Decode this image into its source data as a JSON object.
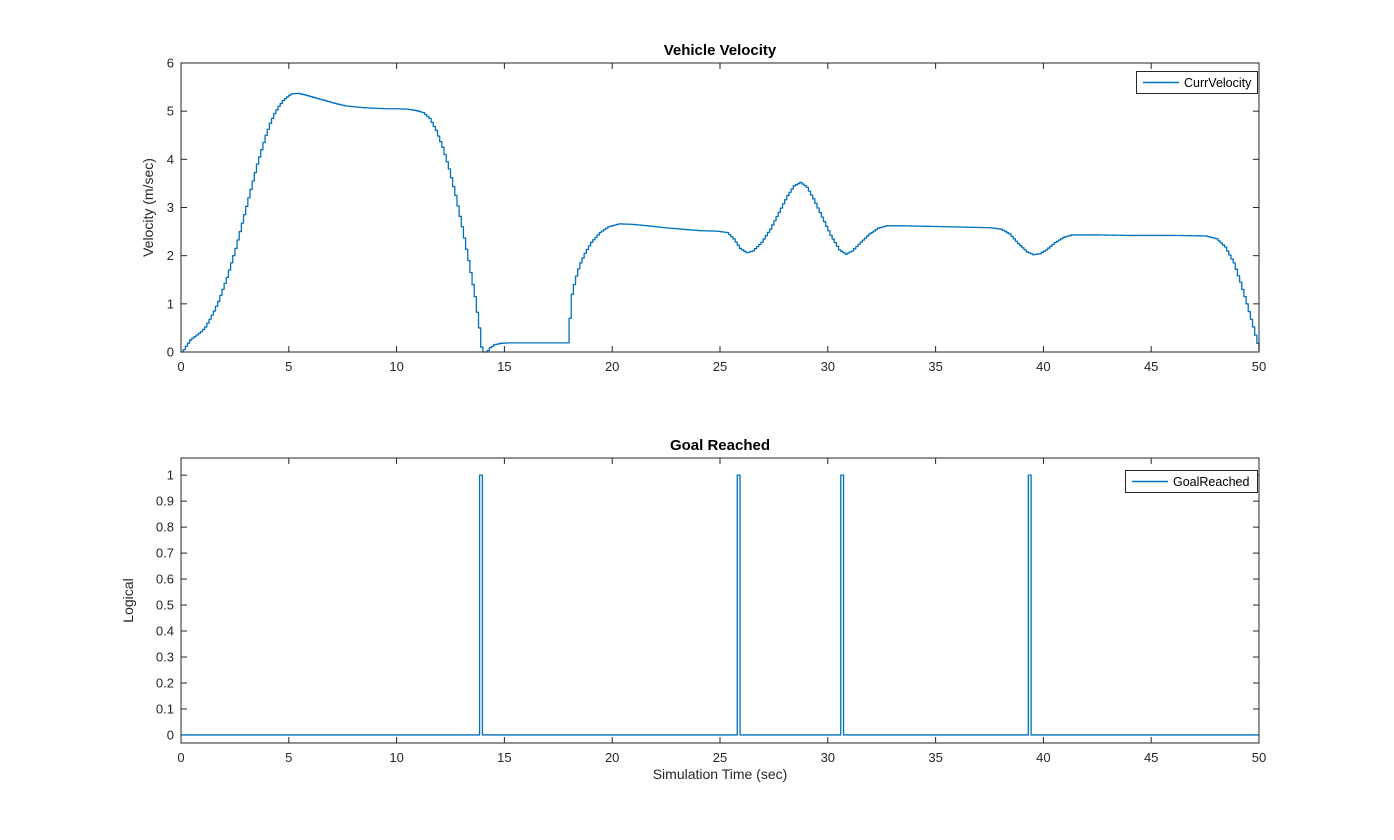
{
  "figure": {
    "background": "#ffffff",
    "axis_color": "#262626",
    "accent_blue": "#0072bd"
  },
  "chart_data": [
    {
      "type": "line",
      "title": "Vehicle Velocity",
      "xlabel": "",
      "ylabel": "Velocity (m/sec)",
      "xlim": [
        0,
        50
      ],
      "ylim": [
        0,
        6
      ],
      "xticks": [
        0,
        5,
        10,
        15,
        20,
        25,
        30,
        35,
        40,
        45,
        50
      ],
      "yticks": [
        0,
        1,
        2,
        3,
        4,
        5,
        6
      ],
      "grid": false,
      "box": true,
      "legend_position": "northeast",
      "line_width": 1.3,
      "sample_step_sec": 0.1,
      "series": [
        {
          "name": "CurrVelocity",
          "color": "#0072bd",
          "style": "zero-order-hold-staircase",
          "points": [
            [
              0,
              0
            ],
            [
              0.1,
              0.05
            ],
            [
              0.25,
              0.15
            ],
            [
              0.4,
              0.25
            ],
            [
              0.6,
              0.32
            ],
            [
              0.9,
              0.42
            ],
            [
              1.1,
              0.52
            ],
            [
              1.3,
              0.68
            ],
            [
              1.5,
              0.85
            ],
            [
              1.7,
              1.05
            ],
            [
              1.9,
              1.3
            ],
            [
              2.1,
              1.55
            ],
            [
              2.3,
              1.85
            ],
            [
              2.5,
              2.15
            ],
            [
              2.7,
              2.5
            ],
            [
              2.9,
              2.85
            ],
            [
              3.1,
              3.2
            ],
            [
              3.3,
              3.55
            ],
            [
              3.5,
              3.9
            ],
            [
              3.7,
              4.2
            ],
            [
              3.9,
              4.5
            ],
            [
              4.1,
              4.75
            ],
            [
              4.3,
              4.95
            ],
            [
              4.5,
              5.1
            ],
            [
              4.7,
              5.22
            ],
            [
              4.9,
              5.3
            ],
            [
              5.1,
              5.36
            ],
            [
              5.4,
              5.37
            ],
            [
              5.7,
              5.34
            ],
            [
              6.0,
              5.3
            ],
            [
              6.4,
              5.25
            ],
            [
              6.8,
              5.2
            ],
            [
              7.2,
              5.15
            ],
            [
              7.6,
              5.11
            ],
            [
              8.0,
              5.09
            ],
            [
              8.5,
              5.07
            ],
            [
              9.0,
              5.06
            ],
            [
              9.5,
              5.05
            ],
            [
              10.0,
              5.05
            ],
            [
              10.5,
              5.04
            ],
            [
              10.9,
              5.01
            ],
            [
              11.2,
              4.97
            ],
            [
              11.5,
              4.85
            ],
            [
              11.8,
              4.6
            ],
            [
              12.1,
              4.25
            ],
            [
              12.4,
              3.8
            ],
            [
              12.7,
              3.25
            ],
            [
              13.0,
              2.6
            ],
            [
              13.3,
              1.9
            ],
            [
              13.6,
              1.15
            ],
            [
              13.8,
              0.5
            ],
            [
              13.9,
              0.1
            ],
            [
              13.95,
              0
            ],
            [
              14.15,
              0
            ],
            [
              14.3,
              0.09
            ],
            [
              14.5,
              0.15
            ],
            [
              14.8,
              0.18
            ],
            [
              15.2,
              0.19
            ],
            [
              17.9,
              0.19
            ],
            [
              18.0,
              0.7
            ],
            [
              18.1,
              1.2
            ],
            [
              18.25,
              1.5
            ],
            [
              18.45,
              1.8
            ],
            [
              18.7,
              2.05
            ],
            [
              19.0,
              2.28
            ],
            [
              19.4,
              2.48
            ],
            [
              19.8,
              2.6
            ],
            [
              20.3,
              2.66
            ],
            [
              20.9,
              2.65
            ],
            [
              21.6,
              2.62
            ],
            [
              22.4,
              2.58
            ],
            [
              23.2,
              2.55
            ],
            [
              24.0,
              2.52
            ],
            [
              24.8,
              2.51
            ],
            [
              25.3,
              2.48
            ],
            [
              25.6,
              2.35
            ],
            [
              25.9,
              2.15
            ],
            [
              26.2,
              2.06
            ],
            [
              26.5,
              2.1
            ],
            [
              26.9,
              2.28
            ],
            [
              27.3,
              2.55
            ],
            [
              27.7,
              2.9
            ],
            [
              28.1,
              3.25
            ],
            [
              28.4,
              3.45
            ],
            [
              28.7,
              3.52
            ],
            [
              29.0,
              3.42
            ],
            [
              29.3,
              3.18
            ],
            [
              29.7,
              2.8
            ],
            [
              30.1,
              2.42
            ],
            [
              30.5,
              2.12
            ],
            [
              30.8,
              2.03
            ],
            [
              31.1,
              2.1
            ],
            [
              31.5,
              2.28
            ],
            [
              31.9,
              2.45
            ],
            [
              32.3,
              2.57
            ],
            [
              32.7,
              2.62
            ],
            [
              33.5,
              2.62
            ],
            [
              34.5,
              2.61
            ],
            [
              35.5,
              2.6
            ],
            [
              36.5,
              2.59
            ],
            [
              37.5,
              2.58
            ],
            [
              38.0,
              2.55
            ],
            [
              38.4,
              2.45
            ],
            [
              38.8,
              2.25
            ],
            [
              39.2,
              2.08
            ],
            [
              39.5,
              2.02
            ],
            [
              39.8,
              2.04
            ],
            [
              40.1,
              2.12
            ],
            [
              40.5,
              2.27
            ],
            [
              40.9,
              2.38
            ],
            [
              41.3,
              2.43
            ],
            [
              42.5,
              2.43
            ],
            [
              44.0,
              2.42
            ],
            [
              46.0,
              2.42
            ],
            [
              47.5,
              2.41
            ],
            [
              48.0,
              2.35
            ],
            [
              48.4,
              2.18
            ],
            [
              48.8,
              1.85
            ],
            [
              49.1,
              1.45
            ],
            [
              49.4,
              1.0
            ],
            [
              49.7,
              0.52
            ],
            [
              49.9,
              0.18
            ],
            [
              50,
              0.02
            ]
          ]
        }
      ]
    },
    {
      "type": "line",
      "title": "Goal Reached",
      "xlabel": "Simulation Time (sec)",
      "ylabel": "Logical",
      "xlim": [
        0,
        50
      ],
      "ylim": [
        -0.031,
        1.066
      ],
      "xticks": [
        0,
        5,
        10,
        15,
        20,
        25,
        30,
        35,
        40,
        45,
        50
      ],
      "yticks": [
        0,
        0.1,
        0.2,
        0.3,
        0.4,
        0.5,
        0.6,
        0.7,
        0.8,
        0.9,
        1
      ],
      "grid": false,
      "box": true,
      "legend_position": "northeast",
      "line_width": 1.3,
      "series": [
        {
          "name": "GoalReached",
          "color": "#0072bd",
          "style": "pulse-train",
          "baseline": 0,
          "pulse_height": 1,
          "pulse_width_sec": 0.13,
          "pulse_times": [
            13.85,
            25.8,
            30.6,
            39.3
          ]
        }
      ]
    }
  ]
}
